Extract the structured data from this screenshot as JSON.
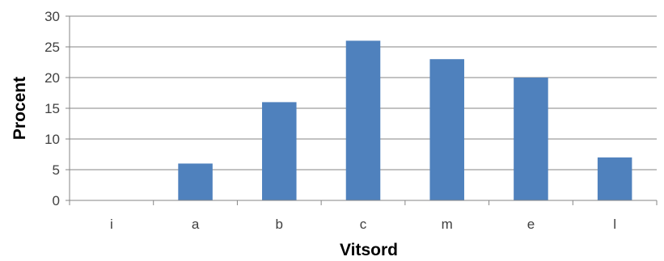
{
  "chart_data": {
    "type": "bar",
    "categories": [
      "i",
      "a",
      "b",
      "c",
      "m",
      "e",
      "l"
    ],
    "values": [
      0,
      6,
      16,
      26,
      23,
      20,
      7
    ],
    "title": "",
    "xlabel": "Vitsord",
    "ylabel": "Procent",
    "ylim": [
      0,
      30
    ],
    "yticks": [
      0,
      5,
      10,
      15,
      20,
      25,
      30
    ],
    "grid": true,
    "legend": "none",
    "bar_color": "#4F81BD"
  }
}
